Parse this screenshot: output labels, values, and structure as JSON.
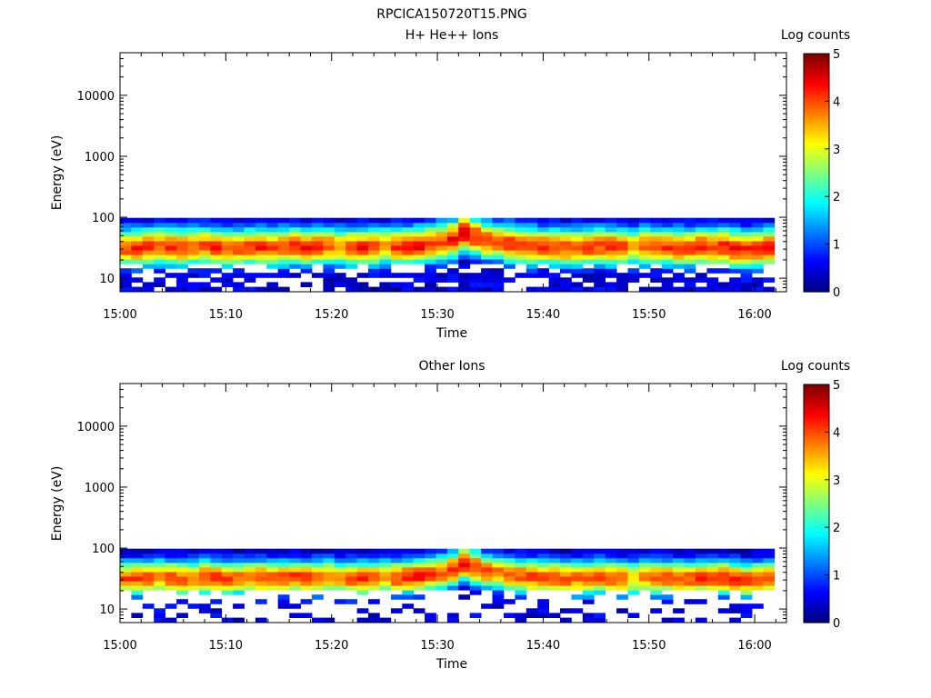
{
  "figure_title": "RPCICA150720T15.PNG",
  "colorbar": {
    "label": "Log counts",
    "range": [
      0,
      5
    ],
    "ticks": [
      "0",
      "1",
      "2",
      "3",
      "4",
      "5"
    ],
    "colormap": "jet"
  },
  "chart_data": [
    {
      "type": "heatmap",
      "title": "H+ He++ Ions",
      "xlabel": "Time",
      "ylabel": "Energy (eV)",
      "yscale": "log",
      "ylim": [
        6,
        50000
      ],
      "xlim": [
        "15:00",
        "16:03"
      ],
      "x_ticks": [
        "15:00",
        "15:10",
        "15:20",
        "15:30",
        "15:40",
        "15:50",
        "16:00"
      ],
      "y_ticks": [
        "10",
        "100",
        "1000",
        "10000"
      ],
      "time_start": "15:00:32",
      "time_step_s": 64,
      "n_time": 58,
      "energy_bins_eV": [
        6.6,
        7.9,
        9.4,
        11.2,
        13.3,
        15.8,
        18.8,
        22.4,
        26.6,
        31.6,
        37.6,
        44.7,
        53.2,
        63.2,
        75.2,
        89.4
      ],
      "peak_energy_eV": [
        32,
        32,
        33,
        34,
        33,
        32,
        33,
        34,
        33,
        32,
        32,
        33,
        33,
        32,
        33,
        34,
        32,
        33,
        34,
        33,
        32,
        32,
        33,
        34,
        33,
        34,
        35,
        37,
        40,
        45,
        56,
        48,
        42,
        40,
        37,
        35,
        34,
        33,
        33,
        32,
        32,
        33,
        34,
        33,
        32,
        33,
        34,
        33,
        33,
        32,
        32,
        33,
        32,
        33,
        31,
        30,
        31,
        32
      ],
      "peak_log_counts": [
        4.1,
        4.2,
        4.1,
        4.0,
        4.2,
        4.1,
        4.0,
        4.1,
        4.2,
        4.1,
        4.0,
        4.1,
        4.2,
        4.1,
        4.1,
        4.2,
        4.3,
        4.1,
        3.9,
        3.8,
        4.2,
        4.3,
        4.1,
        3.7,
        4.2,
        4.3,
        4.4,
        4.2,
        4.1,
        4.3,
        4.6,
        4.3,
        4.1,
        4.0,
        4.2,
        4.1,
        4.2,
        4.1,
        4.2,
        4.1,
        4.0,
        4.2,
        4.1,
        4.2,
        4.1,
        3.5,
        4.0,
        4.2,
        4.1,
        4.2,
        4.1,
        4.3,
        4.2,
        4.3,
        4.4,
        4.2,
        4.3,
        4.3
      ],
      "spread_decades": 0.22,
      "low_energy_sparse_below_eV": 16,
      "lowest_band_fill": 0.85
    },
    {
      "type": "heatmap",
      "title": "Other Ions",
      "xlabel": "Time",
      "ylabel": "Energy (eV)",
      "yscale": "log",
      "ylim": [
        6,
        50000
      ],
      "xlim": [
        "15:00",
        "16:03"
      ],
      "x_ticks": [
        "15:00",
        "15:10",
        "15:20",
        "15:30",
        "15:40",
        "15:50",
        "16:00"
      ],
      "y_ticks": [
        "10",
        "100",
        "1000",
        "10000"
      ],
      "time_start": "15:00:32",
      "time_step_s": 64,
      "n_time": 58,
      "energy_bins_eV": [
        6.6,
        7.9,
        9.4,
        11.2,
        13.3,
        15.8,
        18.8,
        22.4,
        26.6,
        31.6,
        37.6,
        44.7,
        53.2,
        63.2,
        75.2,
        89.4
      ],
      "peak_energy_eV": [
        32,
        32,
        33,
        34,
        33,
        32,
        33,
        34,
        33,
        32,
        32,
        33,
        33,
        32,
        33,
        34,
        32,
        33,
        34,
        33,
        32,
        32,
        33,
        34,
        33,
        34,
        35,
        37,
        40,
        45,
        56,
        48,
        42,
        40,
        37,
        35,
        34,
        33,
        33,
        32,
        32,
        33,
        34,
        33,
        32,
        33,
        34,
        33,
        33,
        32,
        32,
        33,
        32,
        33,
        31,
        30,
        31,
        32
      ],
      "peak_log_counts": [
        4.0,
        4.1,
        4.0,
        3.9,
        4.1,
        4.0,
        3.9,
        4.0,
        4.1,
        4.0,
        3.9,
        4.0,
        4.1,
        4.0,
        4.0,
        4.1,
        4.2,
        4.0,
        3.8,
        3.7,
        4.1,
        4.2,
        4.0,
        3.6,
        4.1,
        4.2,
        4.4,
        4.1,
        4.0,
        4.2,
        4.5,
        4.2,
        4.0,
        3.9,
        4.1,
        4.0,
        4.1,
        4.0,
        4.1,
        4.0,
        3.9,
        4.1,
        4.0,
        4.1,
        4.0,
        3.4,
        3.9,
        4.1,
        4.0,
        4.1,
        4.0,
        4.2,
        4.1,
        4.2,
        4.3,
        4.1,
        4.2,
        4.2
      ],
      "spread_decades": 0.2,
      "low_energy_sparse_below_eV": 20,
      "lowest_band_fill": 0.35
    }
  ]
}
